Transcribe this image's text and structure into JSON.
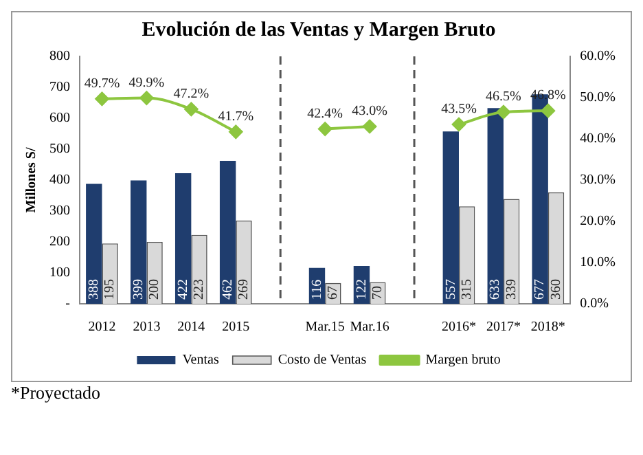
{
  "chart_data": {
    "type": "bar",
    "title": "Evolución de las Ventas y Margen Bruto",
    "ylabel": "Millones S/",
    "categories": [
      "2012",
      "2013",
      "2014",
      "2015",
      null,
      "Mar.15",
      "Mar.16",
      null,
      "2016*",
      "2017*",
      "2018*"
    ],
    "series": [
      {
        "name": "Ventas",
        "color": "#1f3d6e",
        "values": [
          388,
          399,
          422,
          462,
          null,
          116,
          122,
          null,
          557,
          633,
          677
        ]
      },
      {
        "name": "Costo de Ventas",
        "color": "#d9d9d9",
        "values": [
          195,
          200,
          223,
          269,
          null,
          67,
          70,
          null,
          315,
          339,
          360
        ]
      },
      {
        "name": "Margen bruto",
        "type": "line",
        "axis": "y2",
        "color": "#8dc63f",
        "marker": "diamond",
        "values": [
          49.7,
          49.9,
          47.2,
          41.7,
          null,
          42.4,
          43.0,
          null,
          43.5,
          46.5,
          46.8
        ],
        "value_labels": [
          "49.7%",
          "49.9%",
          "47.2%",
          "41.7%",
          null,
          "42.4%",
          "43.0%",
          null,
          "43.5%",
          "46.5%",
          "46.8%"
        ]
      }
    ],
    "ylim": [
      0,
      800
    ],
    "yticks": [
      {
        "value": 0,
        "label": "-"
      },
      100,
      200,
      300,
      400,
      500,
      600,
      700,
      800
    ],
    "y2lim": [
      0,
      60
    ],
    "y2ticks": [
      {
        "value": 0,
        "label": "0.0%"
      },
      {
        "value": 10,
        "label": "10.0%"
      },
      {
        "value": 20,
        "label": "20.0%"
      },
      {
        "value": 30,
        "label": "30.0%"
      },
      {
        "value": 40,
        "label": "40.0%"
      },
      {
        "value": 50,
        "label": "50.0%"
      },
      {
        "value": 60,
        "label": "60.0%"
      }
    ],
    "data_labels": true,
    "legend": "bottom",
    "annotations": [
      "*Proyectado"
    ]
  }
}
